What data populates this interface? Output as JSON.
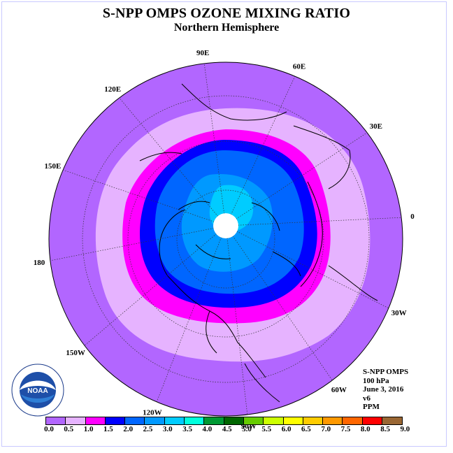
{
  "title": "S-NPP OMPS OZONE MIXING RATIO",
  "subtitle": "Northern Hemisphere",
  "longitude_labels": [
    "90E",
    "60E",
    "30E",
    "0",
    "30W",
    "60W",
    "90W",
    "120W",
    "150W",
    "180",
    "150E",
    "120E"
  ],
  "info": {
    "instrument": "S-NPP OMPS",
    "level": "100 hPa",
    "date": "June 3, 2016",
    "version": "v6",
    "units": "PPM"
  },
  "colorbar": {
    "colors": [
      "#b266ff",
      "#e6b3ff",
      "#ff00ff",
      "#0000ff",
      "#0066ff",
      "#0099ff",
      "#00ccff",
      "#00ffdd",
      "#009933",
      "#006600",
      "#66cc00",
      "#ccff00",
      "#ffff00",
      "#ffcc00",
      "#ff9900",
      "#ff6600",
      "#ff0000",
      "#996633"
    ],
    "ticks": [
      "0.0",
      "0.5",
      "1.0",
      "1.5",
      "2.0",
      "2.5",
      "3.0",
      "3.5",
      "4.0",
      "4.5",
      "5.0",
      "5.5",
      "6.0",
      "6.5",
      "7.0",
      "7.5",
      "8.0",
      "8.5",
      "9.0"
    ]
  },
  "logo_text": "NOAA",
  "logo_ring_text": "NATIONAL OCEANIC AND ATMOSPHERIC ADMINISTRATION · U.S. DEPARTMENT OF COMMERCE"
}
